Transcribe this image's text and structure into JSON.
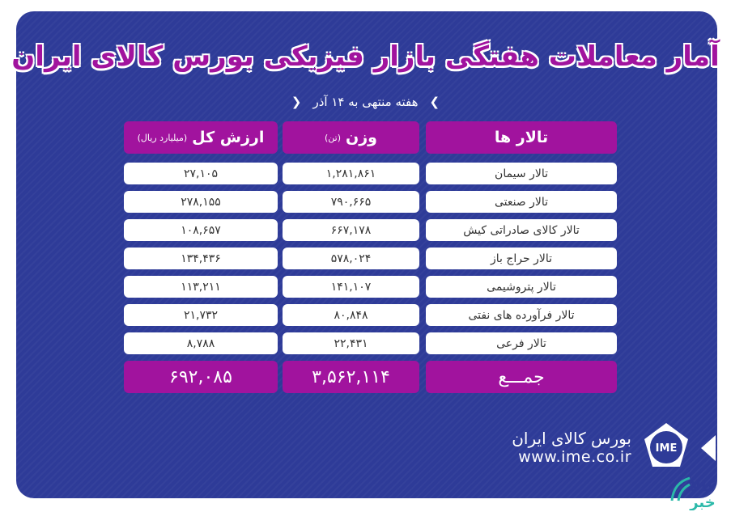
{
  "title": "آمار معاملات هفتگی بازار فیزیکی بورس کالای ایران",
  "subtitle": "هفته منتهی به ۱۴ آذر",
  "table": {
    "headers": {
      "hall": "تالار ها",
      "weight": "وزن",
      "weight_unit": "(تن)",
      "value": "ارزش کل",
      "value_unit": "(میلیارد ریال)"
    },
    "rows": [
      {
        "hall": "تالار سیمان",
        "weight": "۱,۲۸۱,۸۶۱",
        "value": "۲۷,۱۰۵"
      },
      {
        "hall": "تالار صنعتی",
        "weight": "۷۹۰,۶۶۵",
        "value": "۲۷۸,۱۵۵"
      },
      {
        "hall": "تالار کالای صادراتی کیش",
        "weight": "۶۶۷,۱۷۸",
        "value": "۱۰۸,۶۵۷"
      },
      {
        "hall": "تالار حراج باز",
        "weight": "۵۷۸,۰۲۴",
        "value": "۱۳۴,۴۳۶"
      },
      {
        "hall": "تالار پتروشیمی",
        "weight": "۱۴۱,۱۰۷",
        "value": "۱۱۳,۲۱۱"
      },
      {
        "hall": "تالار فرآورده های نفتی",
        "weight": "۸۰,۸۴۸",
        "value": "۲۱,۷۳۲"
      },
      {
        "hall": "تالار فرعی",
        "weight": "۲۲,۴۳۱",
        "value": "۸,۷۸۸"
      }
    ],
    "total": {
      "label": "جمـــع",
      "weight": "۳,۵۶۲,۱۱۴",
      "value": "۶۹۲,۰۸۵"
    }
  },
  "brand": {
    "name": "بورس کالای ایران",
    "url": "www.ime.co.ir",
    "logo_text": "IME",
    "watermark": "کالا خبر"
  },
  "colors": {
    "background": "#2e3b98",
    "accent": "#a1139e",
    "watermark": "#2bb9a9"
  }
}
